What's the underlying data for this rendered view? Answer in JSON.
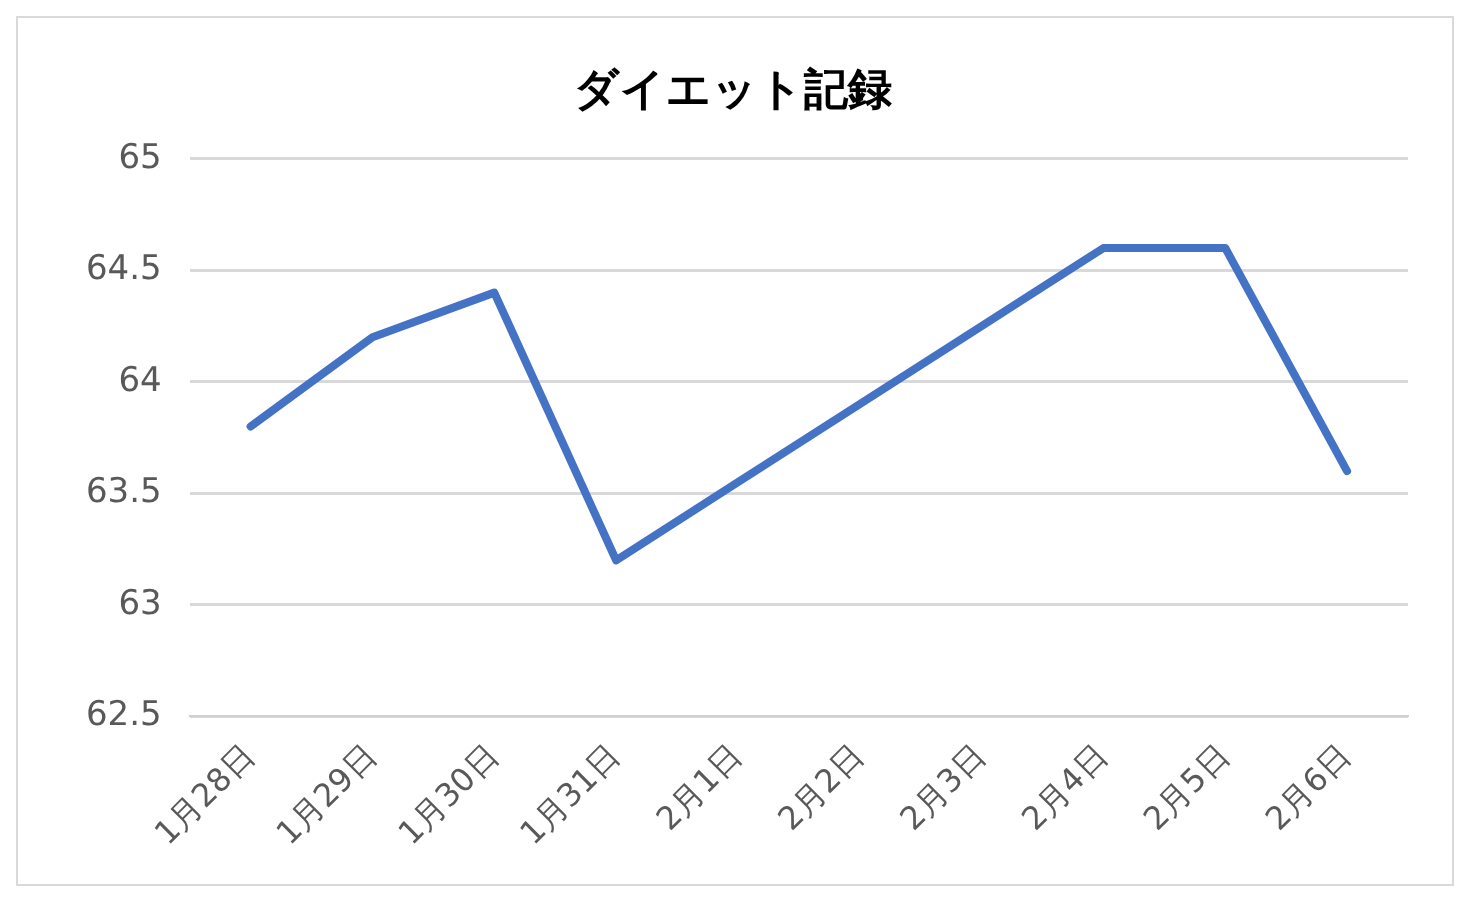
{
  "chart_data": {
    "type": "line",
    "title": "ダイエット記録",
    "categories": [
      "1月28日",
      "1月29日",
      "1月30日",
      "1月31日",
      "2月1日",
      "2月2日",
      "2月3日",
      "2月4日",
      "2月5日",
      "2月6日"
    ],
    "series": [
      {
        "color": "#4472c4",
        "values": [
          63.8,
          64.2,
          64.4,
          63.2,
          63.55,
          63.9,
          64.25,
          64.6,
          64.6,
          63.6
        ]
      }
    ],
    "ylim": [
      62.5,
      65
    ],
    "yticks": [
      62.5,
      63,
      63.5,
      64,
      64.5,
      65
    ],
    "grid": "y",
    "legend": false,
    "marker": "none",
    "line_style": "solid"
  }
}
